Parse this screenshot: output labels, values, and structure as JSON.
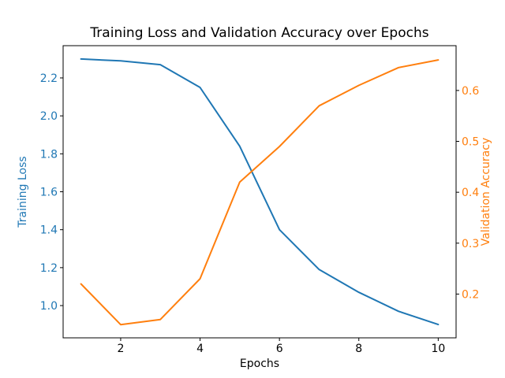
{
  "chart_data": {
    "type": "line",
    "title": "Training Loss and Validation Accuracy over Epochs",
    "xlabel": "Epochs",
    "x": [
      1,
      2,
      3,
      4,
      5,
      6,
      7,
      8,
      9,
      10
    ],
    "series": [
      {
        "name": "Training Loss",
        "axis": "left",
        "color": "#1f77b4",
        "values": [
          2.3,
          2.29,
          2.27,
          2.15,
          1.84,
          1.4,
          1.19,
          1.07,
          0.97,
          0.9
        ]
      },
      {
        "name": "Validation Accuracy",
        "axis": "right",
        "color": "#ff7f0e",
        "values": [
          0.22,
          0.14,
          0.15,
          0.23,
          0.42,
          0.49,
          0.57,
          0.61,
          0.645,
          0.66
        ]
      }
    ],
    "axes": {
      "x": {
        "ticks": [
          2,
          4,
          6,
          8,
          10
        ],
        "lim": [
          0.55,
          10.45
        ]
      },
      "left": {
        "label": "Training Loss",
        "color": "#1f77b4",
        "ticks": [
          1.0,
          1.2,
          1.4,
          1.6,
          1.8,
          2.0,
          2.2
        ],
        "lim": [
          0.83,
          2.37
        ]
      },
      "right": {
        "label": "Validation Accuracy",
        "color": "#ff7f0e",
        "ticks": [
          0.2,
          0.3,
          0.4,
          0.5,
          0.6
        ],
        "lim": [
          0.114,
          0.688
        ]
      }
    },
    "grid": false,
    "legend": null,
    "text_color": "#000000",
    "spine_color": "#000000"
  }
}
